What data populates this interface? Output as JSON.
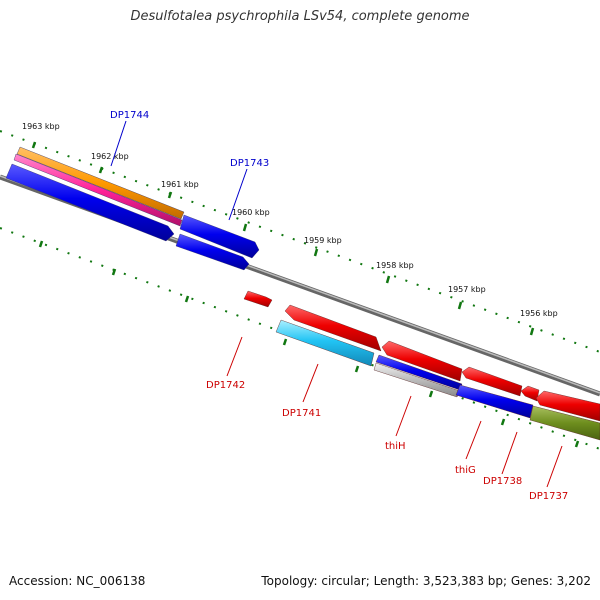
{
  "title": "Desulfotalea psychrophila LSv54, complete genome",
  "footer": {
    "accession": "Accession: NC_006138",
    "info": "Topology: circular; Length: 3,523,383 bp; Genes: 3,202"
  },
  "colors": {
    "forward_label": "#0000cc",
    "reverse_label": "#cc0000",
    "backbone": "#888888",
    "ticks": "#117711"
  },
  "kbp_labels": [
    "1963 kbp",
    "1962 kbp",
    "1961 kbp",
    "1960 kbp",
    "1959 kbp",
    "1958 kbp",
    "1957 kbp",
    "1956 kbp"
  ],
  "genes": {
    "forward": [
      "DP1744",
      "DP1743"
    ],
    "reverse": [
      "DP1742",
      "DP1741",
      "thiH",
      "thiG",
      "DP1738",
      "DP1737"
    ]
  }
}
